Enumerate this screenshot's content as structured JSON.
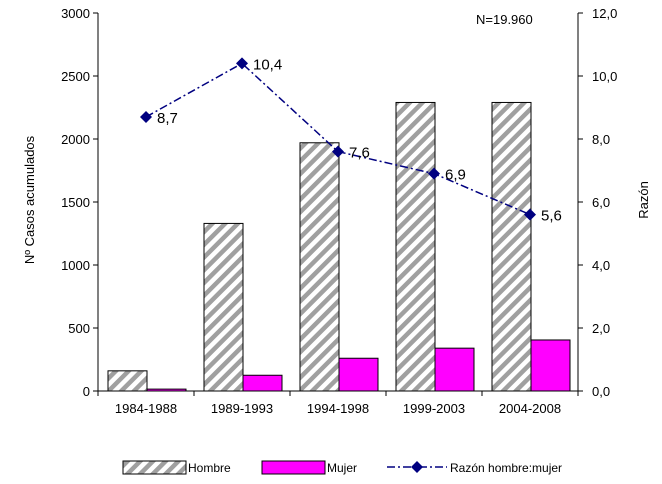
{
  "chart_data": {
    "type": "bar",
    "annotation": "N=19.960",
    "categories": [
      "1984-1988",
      "1989-1993",
      "1994-1998",
      "1999-2003",
      "2004-2008"
    ],
    "ylabel": "Nº Casos acumulados",
    "y2label": "Razón",
    "ylim": [
      0,
      3000
    ],
    "y2lim": [
      0,
      12
    ],
    "yticks": [
      "0",
      "500",
      "1000",
      "1500",
      "2000",
      "2500",
      "3000"
    ],
    "y2ticks": [
      "0,0",
      "2,0",
      "4,0",
      "6,0",
      "8,0",
      "10,0",
      "12,0"
    ],
    "series": [
      {
        "name": "Hombre",
        "kind": "bar",
        "pattern": "diagonal-hatch",
        "color": "#999999",
        "values": [
          160,
          1330,
          1970,
          2290,
          2290
        ]
      },
      {
        "name": "Mujer",
        "kind": "bar",
        "color": "#ff00ff",
        "values": [
          15,
          125,
          260,
          340,
          405
        ]
      },
      {
        "name": "Razón hombre:mujer",
        "kind": "line",
        "axis": "secondary",
        "color": "#000080",
        "line_style": "dash-dot",
        "marker": "diamond",
        "values": [
          8.7,
          10.4,
          7.6,
          6.9,
          5.6
        ],
        "labels": [
          "8,7",
          "10,4",
          "7,6",
          "6,9",
          "5,6"
        ]
      }
    ],
    "legend_position": "bottom",
    "grid": false
  }
}
